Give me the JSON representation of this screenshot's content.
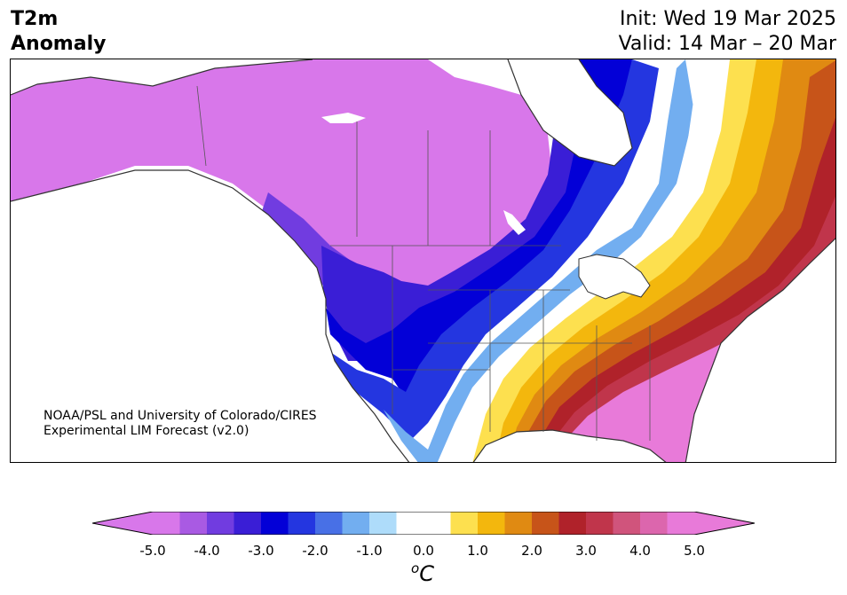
{
  "title": {
    "left_line1": "T2m",
    "left_line2": "Anomaly",
    "init": "Init: Wed 19 Mar 2025",
    "valid": "Valid: 14 Mar – 20 Mar"
  },
  "credit": {
    "line1": "NOAA/PSL and University of Colorado/CIRES",
    "line2": "Experimental LIM Forecast (v2.0)"
  },
  "colorbar": {
    "unit_base": "C",
    "unit_sup": "o",
    "tick_labels": [
      "-5.0",
      "-4.0",
      "-3.0",
      "-2.0",
      "-1.0",
      "0.0",
      "1.0",
      "2.0",
      "3.0",
      "4.0",
      "5.0"
    ],
    "min": -5.0,
    "max": 5.0,
    "colors": [
      "#d877ea",
      "#a95ae3",
      "#713ce0",
      "#3a1ed6",
      "#0300d7",
      "#2436e0",
      "#4870e6",
      "#72aef0",
      "#aedcfa",
      "#ffffff",
      "#ffffff",
      "#fde04f",
      "#f3b70d",
      "#e08a12",
      "#c75419",
      "#b0222a",
      "#c0354b",
      "#d0547c",
      "#dc66ad",
      "#e87ad9"
    ],
    "neg_extend_color": "#d877ea",
    "pos_extend_color": "#e87ad9"
  },
  "map": {
    "land_color": "#ffffff",
    "boundary_color": "#333333",
    "water_color": "#ffffff"
  }
}
